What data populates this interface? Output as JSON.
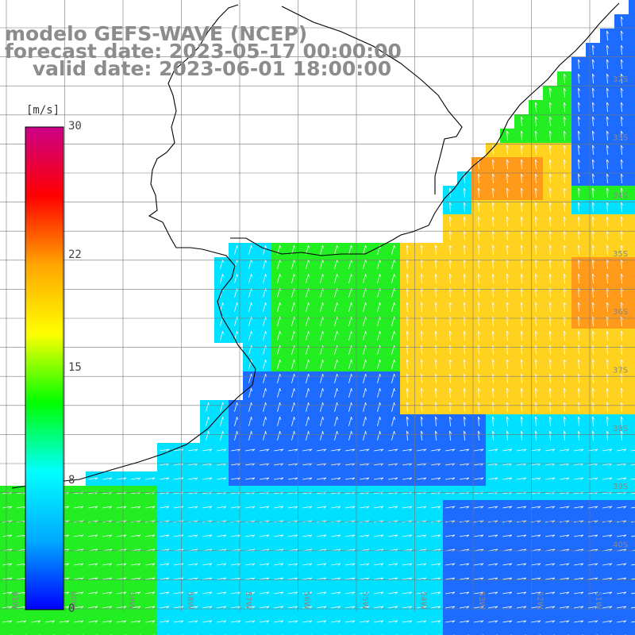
{
  "title": {
    "line1": "modelo GEFS-WAVE (NCEP)",
    "line2": "forecast date: 2023-05-17 00:00:00",
    "line3": "valid date: 2023-06-01 18:00:00"
  },
  "colorbar": {
    "unit": "[m/s]",
    "ticks": [
      "30",
      "22",
      "15",
      "8",
      "0"
    ],
    "tick_values": [
      30,
      22,
      15,
      8,
      0
    ],
    "min": 0,
    "max": 30,
    "colors": [
      "#0000ff",
      "#00aaff",
      "#00ffff",
      "#00ff00",
      "#ffff00",
      "#ffa500",
      "#ff0000",
      "#cc0088"
    ]
  },
  "map": {
    "lat_labels": [
      "32S",
      "33S",
      "34S",
      "35S",
      "36S",
      "37S",
      "38S",
      "39S",
      "40S"
    ],
    "lon_labels": [
      "61W",
      "60W",
      "59W",
      "58W",
      "57W",
      "56W",
      "55W",
      "54W",
      "53W",
      "52W",
      "51W"
    ],
    "region_colors": {
      "calm": "#1e6cff",
      "moderate": "#00e0ff",
      "fresh": "#22ee22",
      "strong": "#ffd21f",
      "gale": "#ff9a1a"
    }
  }
}
